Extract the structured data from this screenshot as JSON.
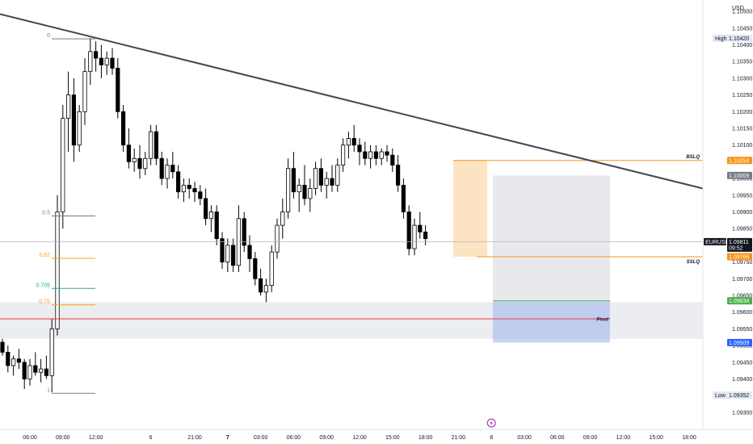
{
  "currency": "USD",
  "chart_data": {
    "type": "candlestick",
    "symbol": "EURUSD",
    "ylim": [
      1.0929,
      1.1051
    ],
    "y_ticks": [
      "1.10500",
      "1.10450",
      "1.10400",
      "1.10350",
      "1.10300",
      "1.10250",
      "1.10200",
      "1.10150",
      "1.10100",
      "1.10050",
      "1.10000",
      "1.09950",
      "1.09900",
      "1.09850",
      "1.09800",
      "1.09750",
      "1.09700",
      "1.09650",
      "1.09600",
      "1.09550",
      "1.09500",
      "1.09450",
      "1.09400",
      "1.09350",
      "1.09300"
    ],
    "x_ticks": [
      {
        "label": "06:00",
        "i": 5,
        "bold": false
      },
      {
        "label": "09:00",
        "i": 11,
        "bold": false
      },
      {
        "label": "12:00",
        "i": 17,
        "bold": false
      },
      {
        "label": "6",
        "i": 27,
        "bold": false
      },
      {
        "label": "21:00",
        "i": 35,
        "bold": false
      },
      {
        "label": "7",
        "i": 41,
        "bold": true
      },
      {
        "label": "03:00",
        "i": 47,
        "bold": false
      },
      {
        "label": "06:00",
        "i": 53,
        "bold": false
      },
      {
        "label": "09:00",
        "i": 59,
        "bold": false
      },
      {
        "label": "12:00",
        "i": 65,
        "bold": false
      },
      {
        "label": "15:00",
        "i": 71,
        "bold": false
      },
      {
        "label": "18:00",
        "i": 77,
        "bold": false
      },
      {
        "label": "21:00",
        "i": 83,
        "bold": false
      },
      {
        "label": "8",
        "i": 89,
        "bold": false
      },
      {
        "label": "03:00",
        "i": 95,
        "bold": false
      },
      {
        "label": "06:00",
        "i": 101,
        "bold": false
      },
      {
        "label": "09:00",
        "i": 107,
        "bold": false
      },
      {
        "label": "12:00",
        "i": 113,
        "bold": false
      },
      {
        "label": "15:00",
        "i": 119,
        "bold": false
      },
      {
        "label": "18:00",
        "i": 125,
        "bold": false
      }
    ],
    "candles": [
      [
        1.0951,
        1.0952,
        1.0947,
        1.0948
      ],
      [
        1.0948,
        1.095,
        1.0942,
        1.0944
      ],
      [
        1.0944,
        1.0947,
        1.0941,
        1.0946
      ],
      [
        1.0946,
        1.0949,
        1.0943,
        1.0945
      ],
      [
        1.0945,
        1.0946,
        1.0937,
        1.094
      ],
      [
        1.094,
        1.0946,
        1.0938,
        1.0944
      ],
      [
        1.0944,
        1.0948,
        1.0941,
        1.0942
      ],
      [
        1.0942,
        1.0946,
        1.0939,
        1.0943
      ],
      [
        1.0943,
        1.0947,
        1.094,
        1.0941
      ],
      [
        1.0941,
        1.0958,
        1.0936,
        1.0955
      ],
      [
        1.0955,
        1.0995,
        1.0953,
        1.099
      ],
      [
        1.099,
        1.1022,
        1.0985,
        1.1018
      ],
      [
        1.1018,
        1.1032,
        1.1008,
        1.1025
      ],
      [
        1.1025,
        1.103,
        1.1005,
        1.101
      ],
      [
        1.101,
        1.1022,
        1.1008,
        1.102
      ],
      [
        1.102,
        1.1036,
        1.1016,
        1.1032
      ],
      [
        1.1032,
        1.1042,
        1.1028,
        1.1038
      ],
      [
        1.1038,
        1.1041,
        1.1032,
        1.1036
      ],
      [
        1.1036,
        1.104,
        1.103,
        1.1034
      ],
      [
        1.1034,
        1.1038,
        1.1031,
        1.1036
      ],
      [
        1.1036,
        1.1039,
        1.1031,
        1.1033
      ],
      [
        1.1033,
        1.1036,
        1.1018,
        1.102
      ],
      [
        1.102,
        1.1022,
        1.1008,
        1.101
      ],
      [
        1.101,
        1.1015,
        1.1003,
        1.1005
      ],
      [
        1.1005,
        1.1009,
        1.1002,
        1.1006
      ],
      [
        1.1006,
        1.101,
        1.1,
        1.1003
      ],
      [
        1.1003,
        1.1008,
        1.1001,
        1.1006
      ],
      [
        1.1006,
        1.1016,
        1.1004,
        1.1014
      ],
      [
        1.1014,
        1.1016,
        1.1004,
        1.1006
      ],
      [
        1.1006,
        1.1008,
        1.0998,
        1.1
      ],
      [
        1.1,
        1.1006,
        1.0997,
        1.1004
      ],
      [
        1.1004,
        1.1008,
        1.1,
        1.1002
      ],
      [
        1.1002,
        1.1004,
        1.0994,
        1.0996
      ],
      [
        1.0996,
        1.1,
        1.0993,
        1.0998
      ],
      [
        1.0998,
        1.1,
        1.0994,
        1.0997
      ],
      [
        1.0997,
        1.0999,
        1.0993,
        1.0996
      ],
      [
        1.0996,
        1.0998,
        1.0992,
        1.0994
      ],
      [
        1.0994,
        1.0997,
        1.0986,
        1.0988
      ],
      [
        1.0988,
        1.0992,
        1.0984,
        1.099
      ],
      [
        1.099,
        1.0992,
        1.098,
        1.0982
      ],
      [
        1.0982,
        1.0984,
        1.0973,
        1.0975
      ],
      [
        1.0975,
        1.0982,
        1.0972,
        1.098
      ],
      [
        1.098,
        1.0982,
        1.0972,
        1.0974
      ],
      [
        1.0974,
        1.0992,
        1.0972,
        1.0988
      ],
      [
        1.0988,
        1.099,
        1.0978,
        1.098
      ],
      [
        1.098,
        1.0983,
        1.0972,
        1.0976
      ],
      [
        1.0976,
        1.0978,
        1.0968,
        1.097
      ],
      [
        1.097,
        1.0973,
        1.0965,
        1.0966
      ],
      [
        1.0966,
        1.097,
        1.0963,
        1.0968
      ],
      [
        1.0968,
        1.098,
        1.0966,
        1.0978
      ],
      [
        1.0978,
        1.0988,
        1.0976,
        1.0986
      ],
      [
        1.0986,
        1.0994,
        1.0982,
        1.099
      ],
      [
        1.099,
        1.1006,
        1.0988,
        1.1003
      ],
      [
        1.1003,
        1.1008,
        1.0994,
        1.0996
      ],
      [
        1.0996,
        1.1,
        1.099,
        1.0998
      ],
      [
        1.0998,
        1.1004,
        1.0992,
        1.0994
      ],
      [
        1.0994,
        1.1,
        1.099,
        1.0997
      ],
      [
        1.0997,
        1.1005,
        1.0995,
        1.1003
      ],
      [
        1.1003,
        1.1006,
        1.0996,
        1.0998
      ],
      [
        1.0998,
        1.1002,
        1.0994,
        1.1
      ],
      [
        1.1,
        1.1004,
        1.0996,
        1.0998
      ],
      [
        1.0998,
        1.1006,
        1.0996,
        1.1004
      ],
      [
        1.1004,
        1.1012,
        1.1002,
        1.101
      ],
      [
        1.101,
        1.1014,
        1.1006,
        1.1012
      ],
      [
        1.1012,
        1.1016,
        1.1008,
        1.101
      ],
      [
        1.101,
        1.1012,
        1.1004,
        1.1008
      ],
      [
        1.1008,
        1.1011,
        1.1004,
        1.1006
      ],
      [
        1.1006,
        1.101,
        1.1003,
        1.1008
      ],
      [
        1.1008,
        1.101,
        1.1004,
        1.1006
      ],
      [
        1.1006,
        1.1009,
        1.1004,
        1.1008
      ],
      [
        1.1008,
        1.101,
        1.1005,
        1.1007
      ],
      [
        1.1007,
        1.1009,
        1.1002,
        1.1004
      ],
      [
        1.1004,
        1.1007,
        1.0996,
        1.0998
      ],
      [
        1.0998,
        1.1,
        1.0988,
        1.099
      ],
      [
        1.099,
        1.0992,
        1.0977,
        1.0979
      ],
      [
        1.0979,
        1.0988,
        1.0977,
        1.0986
      ],
      [
        1.0986,
        1.099,
        1.0982,
        1.0984
      ],
      [
        1.0984,
        1.0986,
        1.098,
        1.0982
      ]
    ],
    "first_candle_index": 0,
    "visible_bars": 130
  },
  "fib": [
    {
      "label": "0",
      "price": 1.10418,
      "color": "#787b86"
    },
    {
      "label": "0.5",
      "price": 1.09888,
      "color": "#787b86"
    },
    {
      "label": "0.62",
      "price": 1.09761,
      "color": "#f7a21b"
    },
    {
      "label": "0.705",
      "price": 1.09671,
      "color": "#22ab94"
    },
    {
      "label": "0.75",
      "price": 1.09622,
      "color": "#f7a21b"
    },
    {
      "label": "1",
      "price": 1.09357,
      "color": "#787b86"
    }
  ],
  "levels": {
    "bslq": {
      "label": "BSLQ",
      "price": "1.10054",
      "value": 1.10054,
      "color": "#f7931a"
    },
    "entry": {
      "price": "1.10009",
      "value": 1.10009,
      "color": "#787b86"
    },
    "current": {
      "symbol": "EURUSD",
      "price": "1.09811",
      "countdown": "09:52",
      "value": 1.09811
    },
    "sslq": {
      "label": "SSLQ",
      "price": "1.09766",
      "value": 1.09766,
      "color": "#f7931a"
    },
    "tp": {
      "price": "1.09634",
      "value": 1.09634,
      "color": "#4caf50"
    },
    "target": {
      "price": "1.09509",
      "value": 1.09509,
      "color": "#2962ff"
    },
    "pivot": {
      "label": "Pivot",
      "value": 1.0958,
      "color": "#f23645"
    },
    "high": {
      "label": "High",
      "price": "1.10420",
      "value": 1.1042
    },
    "low": {
      "label": "Low",
      "price": "1.09352",
      "value": 1.09352
    }
  },
  "zone": {
    "top": 1.0963,
    "bottom": 1.0952
  },
  "trendline": {
    "start_price": 1.10492,
    "end_price": 1.0997
  },
  "ob_box": {
    "top": 1.10054,
    "bottom": 1.09766
  },
  "position": {
    "top": 1.10009,
    "entry": 1.09634,
    "bottom": 1.09509
  },
  "alert_icon": "lightning-alert-icon"
}
